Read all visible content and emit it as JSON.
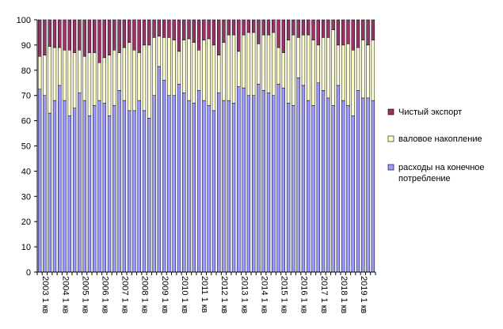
{
  "chart_data": {
    "type": "bar",
    "stacked": true,
    "title": "",
    "xlabel": "",
    "ylabel": "",
    "ylim": [
      0,
      100
    ],
    "yticks": [
      0,
      10,
      20,
      30,
      40,
      50,
      60,
      70,
      80,
      90,
      100
    ],
    "grid": false,
    "legend_position": "right",
    "categories": [
      "2003 1 кв",
      "2003 2 кв",
      "2003 3 кв",
      "2003 4 кв",
      "2004 1 кв",
      "2004 2 кв",
      "2004 3 кв",
      "2004 4 кв",
      "2005 1 кв",
      "2005 2 кв",
      "2005 3 кв",
      "2005 4 кв",
      "2006 1 кв",
      "2006 2 кв",
      "2006 3 кв",
      "2006 4 кв",
      "2007 1 кв",
      "2007 2 кв",
      "2007 3 кв",
      "2007 4 кв",
      "2008 1 кв",
      "2008 2 кв",
      "2008 3 кв",
      "2008 4 кв",
      "2009 1 кв",
      "2009 2 кв",
      "2009 3 кв",
      "2009 4 кв",
      "2010 1 кв",
      "2010 2 кв",
      "2010 3 кв",
      "2010 4 кв",
      "2011 1 кв",
      "2011 2 кв",
      "2011 3 кв",
      "2011 4 кв",
      "2012 1 кв",
      "2012 2 кв",
      "2012 3 кв",
      "2012 4 кв",
      "2013 1 кв",
      "2013 2 кв",
      "2013 3 кв",
      "2013 4 кв",
      "2014 1 кв",
      "2014 2 кв",
      "2014 3 кв",
      "2014 4 кв",
      "2015 1 кв",
      "2015 2 кв",
      "2015 3 кв",
      "2015 4 кв",
      "2016 1 кв",
      "2016 2 кв",
      "2016 3 кв",
      "2016 4 кв",
      "2017 1 кв",
      "2017 2 кв",
      "2017 3 кв",
      "2017 4 кв",
      "2018 1 кв",
      "2018 2 кв",
      "2018 3 кв",
      "2018 4 кв",
      "2019 1 кв",
      "2019 2 кв",
      "2019 3 кв",
      "2019 4 кв"
    ],
    "tick_label_every": 4,
    "series": [
      {
        "name": "расходы на конечное потребление",
        "color": "#9999FF",
        "values": [
          72.5,
          70,
          63,
          68,
          74,
          68,
          62,
          65,
          71,
          68,
          62,
          66,
          68,
          67,
          62,
          66,
          72,
          68,
          64,
          64,
          68,
          64,
          61,
          70,
          81.5,
          76,
          70,
          70,
          74.5,
          71,
          68,
          67,
          72,
          68,
          66,
          64,
          71,
          68,
          68,
          67,
          73.5,
          73,
          70,
          70,
          74.5,
          72,
          71,
          70,
          74.5,
          73,
          67,
          66,
          77,
          74,
          68,
          66,
          75,
          72,
          69,
          66,
          74,
          68,
          66,
          62,
          72,
          69,
          69,
          68
        ]
      },
      {
        "name": "валовое накопление",
        "color": "#FFFFCC",
        "values": [
          13,
          16,
          26.5,
          21,
          15,
          20,
          26,
          22,
          17,
          17.5,
          25,
          21,
          15,
          18,
          24,
          22,
          15,
          21,
          27,
          24,
          19,
          26,
          29,
          23,
          12,
          17,
          23,
          22,
          13,
          21,
          24.5,
          24,
          16,
          24,
          26.5,
          26,
          15,
          23,
          26,
          27,
          14,
          21,
          25,
          25,
          16,
          22,
          23,
          25,
          14.5,
          14,
          25,
          28,
          16,
          20,
          26,
          26,
          15,
          21,
          24,
          30,
          16,
          22,
          24.5,
          26,
          17,
          23,
          21,
          24
        ]
      },
      {
        "name": "Чистый экспорт",
        "color": "#993366",
        "values": [
          14.5,
          14,
          10.5,
          11,
          11,
          12,
          12,
          13,
          12,
          14.5,
          13,
          13,
          17,
          15,
          14,
          12,
          13,
          11,
          9,
          12,
          13,
          10,
          10,
          7,
          6.5,
          7,
          7,
          8,
          12.5,
          8,
          7.5,
          9,
          12,
          8,
          7.5,
          10,
          14,
          9,
          6,
          6,
          12.5,
          6,
          5,
          5,
          9.5,
          6,
          6,
          5,
          11,
          13,
          8,
          6,
          7,
          6,
          6,
          8,
          10,
          7,
          7,
          4,
          10,
          10,
          9.5,
          12,
          11,
          8,
          10,
          8
        ]
      }
    ]
  }
}
